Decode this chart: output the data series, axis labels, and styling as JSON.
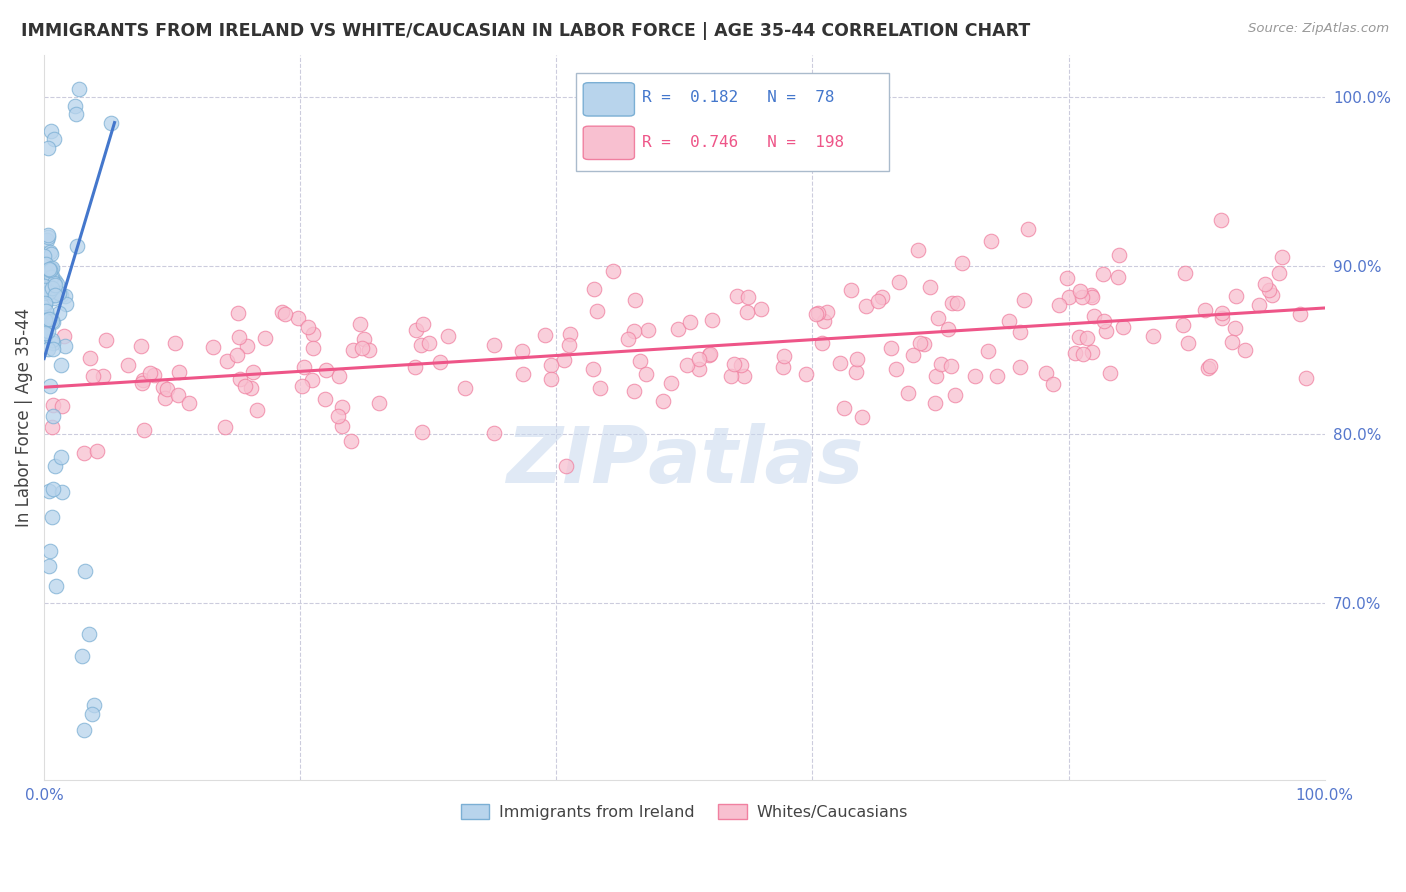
{
  "title": "IMMIGRANTS FROM IRELAND VS WHITE/CAUCASIAN IN LABOR FORCE | AGE 35-44 CORRELATION CHART",
  "source_text": "Source: ZipAtlas.com",
  "ylabel": "In Labor Force | Age 35-44",
  "xlim": [
    0.0,
    1.0
  ],
  "ylim": [
    0.595,
    1.025
  ],
  "y_tick_positions_right": [
    1.0,
    0.9,
    0.8,
    0.7
  ],
  "y_tick_labels_right": [
    "100.0%",
    "90.0%",
    "80.0%",
    "70.0%"
  ],
  "blue_R": 0.182,
  "blue_N": 78,
  "pink_R": 0.746,
  "pink_N": 198,
  "blue_color": "#7BAFD4",
  "pink_color": "#F080A0",
  "blue_scatter_fill": "#B8D4EC",
  "pink_scatter_fill": "#F8C0D0",
  "blue_line_color": "#4477CC",
  "pink_line_color": "#EE5588",
  "title_color": "#333333",
  "axis_label_color": "#444444",
  "tick_color": "#5577CC",
  "grid_color": "#CCCCDD",
  "watermark_color": "#C8D8EE",
  "legend_blue_text": "Immigrants from Ireland",
  "legend_pink_text": "Whites/Caucasians",
  "blue_line_x": [
    0.0,
    0.055
  ],
  "blue_line_y": [
    0.845,
    0.985
  ],
  "pink_line_x": [
    0.0,
    1.0
  ],
  "pink_line_y": [
    0.828,
    0.875
  ]
}
